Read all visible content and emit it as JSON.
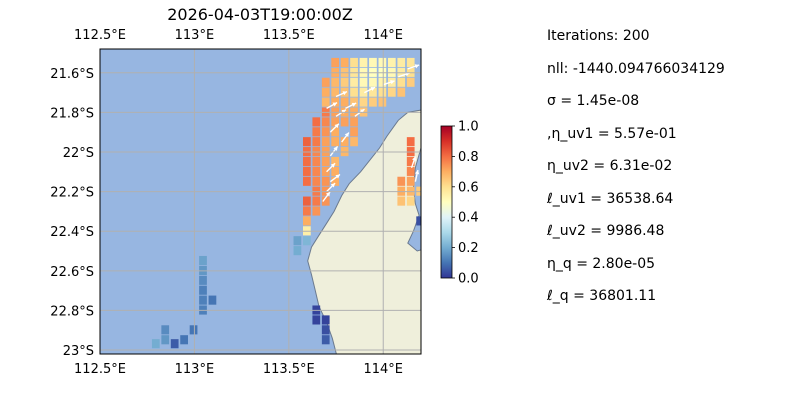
{
  "chart_data": {
    "type": "heatmap",
    "title": "2026-04-03T19:00:00Z",
    "x_ticks": [
      "112.5°E",
      "113°E",
      "113.5°E",
      "114°E"
    ],
    "x_tick_values": [
      112.5,
      113.0,
      113.5,
      114.0
    ],
    "y_ticks": [
      "21.6°S",
      "21.8°S",
      "22°S",
      "22.2°S",
      "22.4°S",
      "22.6°S",
      "22.8°S",
      "23°S"
    ],
    "y_tick_values": [
      -21.6,
      -21.8,
      -22.0,
      -22.2,
      -22.4,
      -22.6,
      -22.8,
      -23.0
    ],
    "xlim": [
      112.5,
      114.2
    ],
    "ylim": [
      -23.02,
      -21.48
    ],
    "grid": true,
    "colorbar": {
      "ticks": [
        "0.0",
        "0.2",
        "0.4",
        "0.6",
        "0.8",
        "1.0"
      ],
      "tick_values": [
        0.0,
        0.2,
        0.4,
        0.6,
        0.8,
        1.0
      ],
      "range": [
        0,
        1
      ],
      "colormap": "RdYlBu_r",
      "colors": [
        "#313695",
        "#4575b4",
        "#74add1",
        "#abd9e9",
        "#e0f3f8",
        "#ffffbf",
        "#fee090",
        "#fdae61",
        "#f46d43",
        "#d73027",
        "#a50026"
      ]
    },
    "colors": {
      "ocean": "#97b6e1",
      "land": "#efefdb",
      "coast": "#6b7a8f",
      "grid": "#b0b0b0",
      "arrow": "#ffffff"
    },
    "cells": [
      {
        "lon": 113.75,
        "lat": -21.55,
        "v": 0.72
      },
      {
        "lon": 113.75,
        "lat": -21.6,
        "v": 0.7
      },
      {
        "lon": 113.75,
        "lat": -21.65,
        "v": 0.68
      },
      {
        "lon": 113.75,
        "lat": -21.7,
        "v": 0.68
      },
      {
        "lon": 113.8,
        "lat": -21.55,
        "v": 0.7
      },
      {
        "lon": 113.8,
        "lat": -21.6,
        "v": 0.66
      },
      {
        "lon": 113.8,
        "lat": -21.65,
        "v": 0.64
      },
      {
        "lon": 113.8,
        "lat": -21.7,
        "v": 0.66
      },
      {
        "lon": 113.8,
        "lat": -21.75,
        "v": 0.7
      },
      {
        "lon": 113.85,
        "lat": -21.55,
        "v": 0.6
      },
      {
        "lon": 113.85,
        "lat": -21.6,
        "v": 0.58
      },
      {
        "lon": 113.85,
        "lat": -21.65,
        "v": 0.56
      },
      {
        "lon": 113.85,
        "lat": -21.7,
        "v": 0.6
      },
      {
        "lon": 113.85,
        "lat": -21.75,
        "v": 0.66
      },
      {
        "lon": 113.85,
        "lat": -21.8,
        "v": 0.7
      },
      {
        "lon": 113.9,
        "lat": -21.55,
        "v": 0.54
      },
      {
        "lon": 113.9,
        "lat": -21.6,
        "v": 0.52
      },
      {
        "lon": 113.9,
        "lat": -21.65,
        "v": 0.52
      },
      {
        "lon": 113.9,
        "lat": -21.7,
        "v": 0.56
      },
      {
        "lon": 113.9,
        "lat": -21.75,
        "v": 0.62
      },
      {
        "lon": 113.9,
        "lat": -21.8,
        "v": 0.66
      },
      {
        "lon": 113.95,
        "lat": -21.55,
        "v": 0.52
      },
      {
        "lon": 113.95,
        "lat": -21.6,
        "v": 0.5
      },
      {
        "lon": 113.95,
        "lat": -21.65,
        "v": 0.52
      },
      {
        "lon": 113.95,
        "lat": -21.7,
        "v": 0.58
      },
      {
        "lon": 113.95,
        "lat": -21.75,
        "v": 0.64
      },
      {
        "lon": 114.0,
        "lat": -21.55,
        "v": 0.52
      },
      {
        "lon": 114.0,
        "lat": -21.6,
        "v": 0.5
      },
      {
        "lon": 114.0,
        "lat": -21.65,
        "v": 0.54
      },
      {
        "lon": 114.0,
        "lat": -21.7,
        "v": 0.6
      },
      {
        "lon": 114.0,
        "lat": -21.75,
        "v": 0.66
      },
      {
        "lon": 114.05,
        "lat": -21.55,
        "v": 0.54
      },
      {
        "lon": 114.05,
        "lat": -21.6,
        "v": 0.52
      },
      {
        "lon": 114.05,
        "lat": -21.65,
        "v": 0.56
      },
      {
        "lon": 114.05,
        "lat": -21.7,
        "v": 0.62
      },
      {
        "lon": 114.1,
        "lat": -21.55,
        "v": 0.56
      },
      {
        "lon": 114.1,
        "lat": -21.6,
        "v": 0.56
      },
      {
        "lon": 114.1,
        "lat": -21.65,
        "v": 0.6
      },
      {
        "lon": 114.1,
        "lat": -21.7,
        "v": 0.66
      },
      {
        "lon": 114.15,
        "lat": -21.55,
        "v": 0.58
      },
      {
        "lon": 114.15,
        "lat": -21.6,
        "v": 0.6
      },
      {
        "lon": 114.15,
        "lat": -21.65,
        "v": 0.64
      },
      {
        "lon": 113.7,
        "lat": -21.65,
        "v": 0.72
      },
      {
        "lon": 113.7,
        "lat": -21.7,
        "v": 0.7
      },
      {
        "lon": 113.7,
        "lat": -21.75,
        "v": 0.68
      },
      {
        "lon": 113.75,
        "lat": -21.75,
        "v": 0.7
      },
      {
        "lon": 113.75,
        "lat": -21.8,
        "v": 0.72
      },
      {
        "lon": 113.8,
        "lat": -21.8,
        "v": 0.7
      },
      {
        "lon": 113.8,
        "lat": -21.85,
        "v": 0.72
      },
      {
        "lon": 113.85,
        "lat": -21.85,
        "v": 0.72
      },
      {
        "lon": 113.7,
        "lat": -21.8,
        "v": 0.78
      },
      {
        "lon": 113.7,
        "lat": -21.85,
        "v": 0.76
      },
      {
        "lon": 113.65,
        "lat": -21.85,
        "v": 0.8
      },
      {
        "lon": 113.65,
        "lat": -21.9,
        "v": 0.78
      },
      {
        "lon": 113.7,
        "lat": -21.9,
        "v": 0.74
      },
      {
        "lon": 113.75,
        "lat": -21.85,
        "v": 0.72
      },
      {
        "lon": 113.75,
        "lat": -21.9,
        "v": 0.7
      },
      {
        "lon": 113.7,
        "lat": -21.95,
        "v": 0.72
      },
      {
        "lon": 113.75,
        "lat": -21.95,
        "v": 0.7
      },
      {
        "lon": 113.65,
        "lat": -21.95,
        "v": 0.78
      },
      {
        "lon": 113.6,
        "lat": -21.95,
        "v": 0.82
      },
      {
        "lon": 113.6,
        "lat": -22.0,
        "v": 0.8
      },
      {
        "lon": 113.65,
        "lat": -22.0,
        "v": 0.76
      },
      {
        "lon": 113.7,
        "lat": -22.0,
        "v": 0.72
      },
      {
        "lon": 113.6,
        "lat": -22.05,
        "v": 0.8
      },
      {
        "lon": 113.65,
        "lat": -22.05,
        "v": 0.76
      },
      {
        "lon": 113.7,
        "lat": -22.05,
        "v": 0.72
      },
      {
        "lon": 113.6,
        "lat": -22.1,
        "v": 0.8
      },
      {
        "lon": 113.65,
        "lat": -22.1,
        "v": 0.76
      },
      {
        "lon": 113.7,
        "lat": -22.1,
        "v": 0.72
      },
      {
        "lon": 113.6,
        "lat": -22.15,
        "v": 0.8
      },
      {
        "lon": 113.65,
        "lat": -22.15,
        "v": 0.76
      },
      {
        "lon": 113.65,
        "lat": -22.2,
        "v": 0.78
      },
      {
        "lon": 113.7,
        "lat": -22.2,
        "v": 0.74
      },
      {
        "lon": 113.65,
        "lat": -22.25,
        "v": 0.78
      },
      {
        "lon": 113.7,
        "lat": -22.25,
        "v": 0.74
      },
      {
        "lon": 113.6,
        "lat": -22.25,
        "v": 0.82
      },
      {
        "lon": 113.6,
        "lat": -22.3,
        "v": 0.78
      },
      {
        "lon": 113.65,
        "lat": -22.3,
        "v": 0.74
      },
      {
        "lon": 113.6,
        "lat": -22.35,
        "v": 0.7
      },
      {
        "lon": 113.6,
        "lat": -22.4,
        "v": 0.55
      },
      {
        "lon": 113.55,
        "lat": -22.45,
        "v": 0.18
      },
      {
        "lon": 113.6,
        "lat": -22.45,
        "v": 0.22
      },
      {
        "lon": 113.55,
        "lat": -22.5,
        "v": 0.2
      },
      {
        "lon": 113.85,
        "lat": -21.9,
        "v": 0.72
      },
      {
        "lon": 113.8,
        "lat": -21.95,
        "v": 0.7
      },
      {
        "lon": 113.85,
        "lat": -21.95,
        "v": 0.68
      },
      {
        "lon": 113.8,
        "lat": -22.0,
        "v": 0.68
      },
      {
        "lon": 113.75,
        "lat": -22.05,
        "v": 0.68
      },
      {
        "lon": 113.75,
        "lat": -22.1,
        "v": 0.7
      },
      {
        "lon": 113.75,
        "lat": -22.15,
        "v": 0.7
      },
      {
        "lon": 113.7,
        "lat": -22.15,
        "v": 0.74
      },
      {
        "lon": 114.15,
        "lat": -21.95,
        "v": 0.8
      },
      {
        "lon": 114.15,
        "lat": -22.0,
        "v": 0.8
      },
      {
        "lon": 114.15,
        "lat": -22.05,
        "v": 0.78
      },
      {
        "lon": 114.15,
        "lat": -22.1,
        "v": 0.76
      },
      {
        "lon": 114.1,
        "lat": -22.15,
        "v": 0.74
      },
      {
        "lon": 114.15,
        "lat": -22.15,
        "v": 0.72
      },
      {
        "lon": 114.1,
        "lat": -22.2,
        "v": 0.7
      },
      {
        "lon": 114.15,
        "lat": -22.2,
        "v": 0.68
      },
      {
        "lon": 114.2,
        "lat": -22.2,
        "v": 0.64
      },
      {
        "lon": 114.1,
        "lat": -22.25,
        "v": 0.66
      },
      {
        "lon": 114.15,
        "lat": -22.25,
        "v": 0.62
      },
      {
        "lon": 114.2,
        "lat": -22.35,
        "v": 0.04
      },
      {
        "lon": 113.05,
        "lat": -22.55,
        "v": 0.18
      },
      {
        "lon": 113.05,
        "lat": -22.6,
        "v": 0.16
      },
      {
        "lon": 113.05,
        "lat": -22.65,
        "v": 0.14
      },
      {
        "lon": 113.05,
        "lat": -22.7,
        "v": 0.12
      },
      {
        "lon": 113.05,
        "lat": -22.75,
        "v": 0.12
      },
      {
        "lon": 113.1,
        "lat": -22.75,
        "v": 0.1
      },
      {
        "lon": 113.05,
        "lat": -22.8,
        "v": 0.12
      },
      {
        "lon": 112.85,
        "lat": -22.9,
        "v": 0.14
      },
      {
        "lon": 112.85,
        "lat": -22.95,
        "v": 0.16
      },
      {
        "lon": 112.8,
        "lat": -22.97,
        "v": 0.2
      },
      {
        "lon": 112.9,
        "lat": -22.97,
        "v": 0.06
      },
      {
        "lon": 112.95,
        "lat": -22.95,
        "v": 0.1
      },
      {
        "lon": 113.0,
        "lat": -22.9,
        "v": 0.1
      },
      {
        "lon": 113.65,
        "lat": -22.8,
        "v": 0.02
      },
      {
        "lon": 113.65,
        "lat": -22.85,
        "v": 0.02
      },
      {
        "lon": 113.7,
        "lat": -22.85,
        "v": 0.02
      },
      {
        "lon": 113.7,
        "lat": -22.9,
        "v": 0.04
      },
      {
        "lon": 113.7,
        "lat": -22.95,
        "v": 0.06
      }
    ],
    "vectors": [
      {
        "lon": 113.7,
        "lat": -21.78,
        "u": 0.9,
        "v": 0.5
      },
      {
        "lon": 113.75,
        "lat": -21.82,
        "u": 0.9,
        "v": 0.6
      },
      {
        "lon": 113.8,
        "lat": -21.78,
        "u": 1.0,
        "v": 0.5
      },
      {
        "lon": 113.85,
        "lat": -21.82,
        "u": 0.8,
        "v": 0.6
      },
      {
        "lon": 113.72,
        "lat": -21.9,
        "u": 0.7,
        "v": 0.7
      },
      {
        "lon": 113.78,
        "lat": -21.95,
        "u": 0.6,
        "v": 0.8
      },
      {
        "lon": 113.72,
        "lat": -22.02,
        "u": 0.6,
        "v": 0.8
      },
      {
        "lon": 113.7,
        "lat": -22.1,
        "u": 0.7,
        "v": 0.7
      },
      {
        "lon": 113.72,
        "lat": -22.15,
        "u": 0.8,
        "v": 0.6
      },
      {
        "lon": 113.68,
        "lat": -22.25,
        "u": 0.6,
        "v": 0.8
      },
      {
        "lon": 113.7,
        "lat": -22.2,
        "u": 0.7,
        "v": 0.7
      },
      {
        "lon": 113.9,
        "lat": -21.7,
        "u": 0.8,
        "v": 0.4
      },
      {
        "lon": 114.0,
        "lat": -21.66,
        "u": 0.9,
        "v": 0.3
      },
      {
        "lon": 114.08,
        "lat": -21.62,
        "u": 0.9,
        "v": 0.3
      },
      {
        "lon": 114.13,
        "lat": -21.58,
        "u": 0.9,
        "v": 0.3
      },
      {
        "lon": 114.15,
        "lat": -22.08,
        "u": 0.3,
        "v": 0.9
      },
      {
        "lon": 114.17,
        "lat": -22.15,
        "u": 0.2,
        "v": 0.9
      },
      {
        "lon": 113.75,
        "lat": -21.72,
        "u": 0.9,
        "v": 0.4
      }
    ]
  },
  "info": {
    "iterations": "Iterations: 200",
    "nll": "nll: -1440.094766034129",
    "sigma": "σ = 1.45e-08",
    "eta_uv1": ",η_uv1 = 5.57e-01",
    "eta_uv2": "η_uv2 = 6.31e-02",
    "ell_uv1": "ℓ_uv1 = 36538.64",
    "ell_uv2": "ℓ_uv2 = 9986.48",
    "eta_q": "η_q = 2.80e-05",
    "ell_q": "ℓ_q = 36801.11"
  }
}
